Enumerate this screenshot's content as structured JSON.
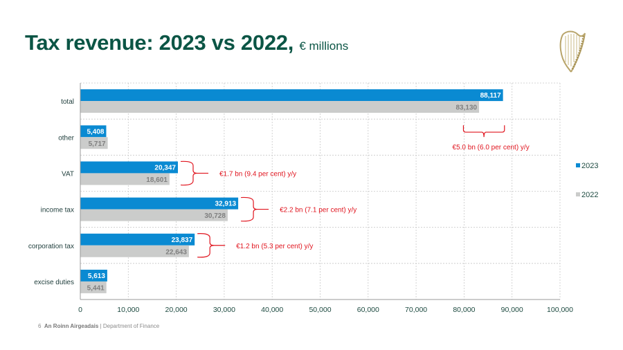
{
  "page": {
    "title_main": "Tax revenue: 2023 vs 2022,",
    "title_unit": "€ millions",
    "footer_page": "6",
    "footer_org_irish": "An Roinn Airgeadais",
    "footer_separator": "|",
    "footer_org_english": "Department of Finance",
    "logo": "harp-crest-icon"
  },
  "colors": {
    "title": "#0b5545",
    "series_2023": "#0a8ad2",
    "series_2022": "#cbcccb",
    "annotation": "#e0141e"
  },
  "chart_data": {
    "type": "bar",
    "orientation": "horizontal",
    "title": "Tax revenue: 2023 vs 2022, € millions",
    "xlabel": "",
    "ylabel": "",
    "categories": [
      "total",
      "other",
      "VAT",
      "income tax",
      "corporation tax",
      "excise duties"
    ],
    "series": [
      {
        "name": "2023",
        "values": [
          88117,
          5408,
          20347,
          32913,
          23837,
          5613
        ],
        "labels": [
          "88,117",
          "5,408",
          "20,347",
          "32,913",
          "23,837",
          "5,613"
        ]
      },
      {
        "name": "2022",
        "values": [
          83130,
          5717,
          18601,
          30728,
          22643,
          5441
        ],
        "labels": [
          "83,130",
          "5,717",
          "18,601",
          "30,728",
          "22,643",
          "5,441"
        ]
      }
    ],
    "xlim": [
      0,
      100000
    ],
    "xticks": [
      0,
      10000,
      20000,
      30000,
      40000,
      50000,
      60000,
      70000,
      80000,
      90000,
      100000
    ],
    "xtick_labels": [
      "0",
      "10,000",
      "20,000",
      "30,000",
      "40,000",
      "50,000",
      "60,000",
      "70,000",
      "80,000",
      "90,000",
      "100,000"
    ],
    "grid": true,
    "legend": {
      "placement": "right",
      "entries": [
        "2023",
        "2022"
      ]
    },
    "annotations": [
      {
        "category": "total",
        "text": "€5.0 bn (6.0 per cent) y/y",
        "brace": "horizontal-below",
        "from": 79000,
        "to": 89000
      },
      {
        "category": "VAT",
        "text": "€1.7 bn (9.4 per cent) y/y"
      },
      {
        "category": "income tax",
        "text": "€2.2 bn (7.1 per cent) y/y"
      },
      {
        "category": "corporation tax",
        "text": "€1.2 bn (5.3 per cent) y/y"
      }
    ]
  }
}
